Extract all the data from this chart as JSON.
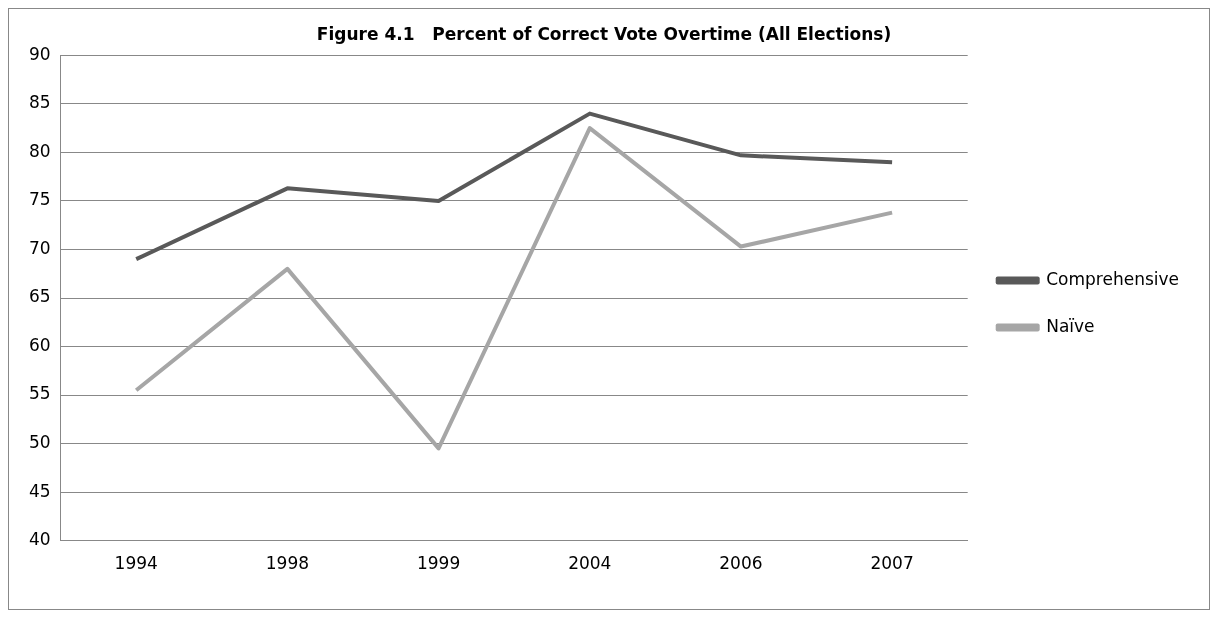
{
  "chart_data": {
    "type": "line",
    "title": "Figure 4.1   Percent of Correct Vote Overtime (All Elections)",
    "categories": [
      "1994",
      "1998",
      "1999",
      "2004",
      "2006",
      "2007"
    ],
    "series": [
      {
        "name": "Comprehensive",
        "color": "#595959",
        "values": [
          69,
          76.3,
          75,
          84,
          79.7,
          79
        ]
      },
      {
        "name": "Naïve",
        "color": "#a6a6a6",
        "values": [
          55.5,
          68,
          49.5,
          82.5,
          70.3,
          73.8
        ]
      }
    ],
    "ylim": [
      40,
      90
    ],
    "yticks": [
      40,
      45,
      50,
      55,
      60,
      65,
      70,
      75,
      80,
      85,
      90
    ],
    "grid": "y",
    "legend": "right",
    "marker": "none"
  }
}
